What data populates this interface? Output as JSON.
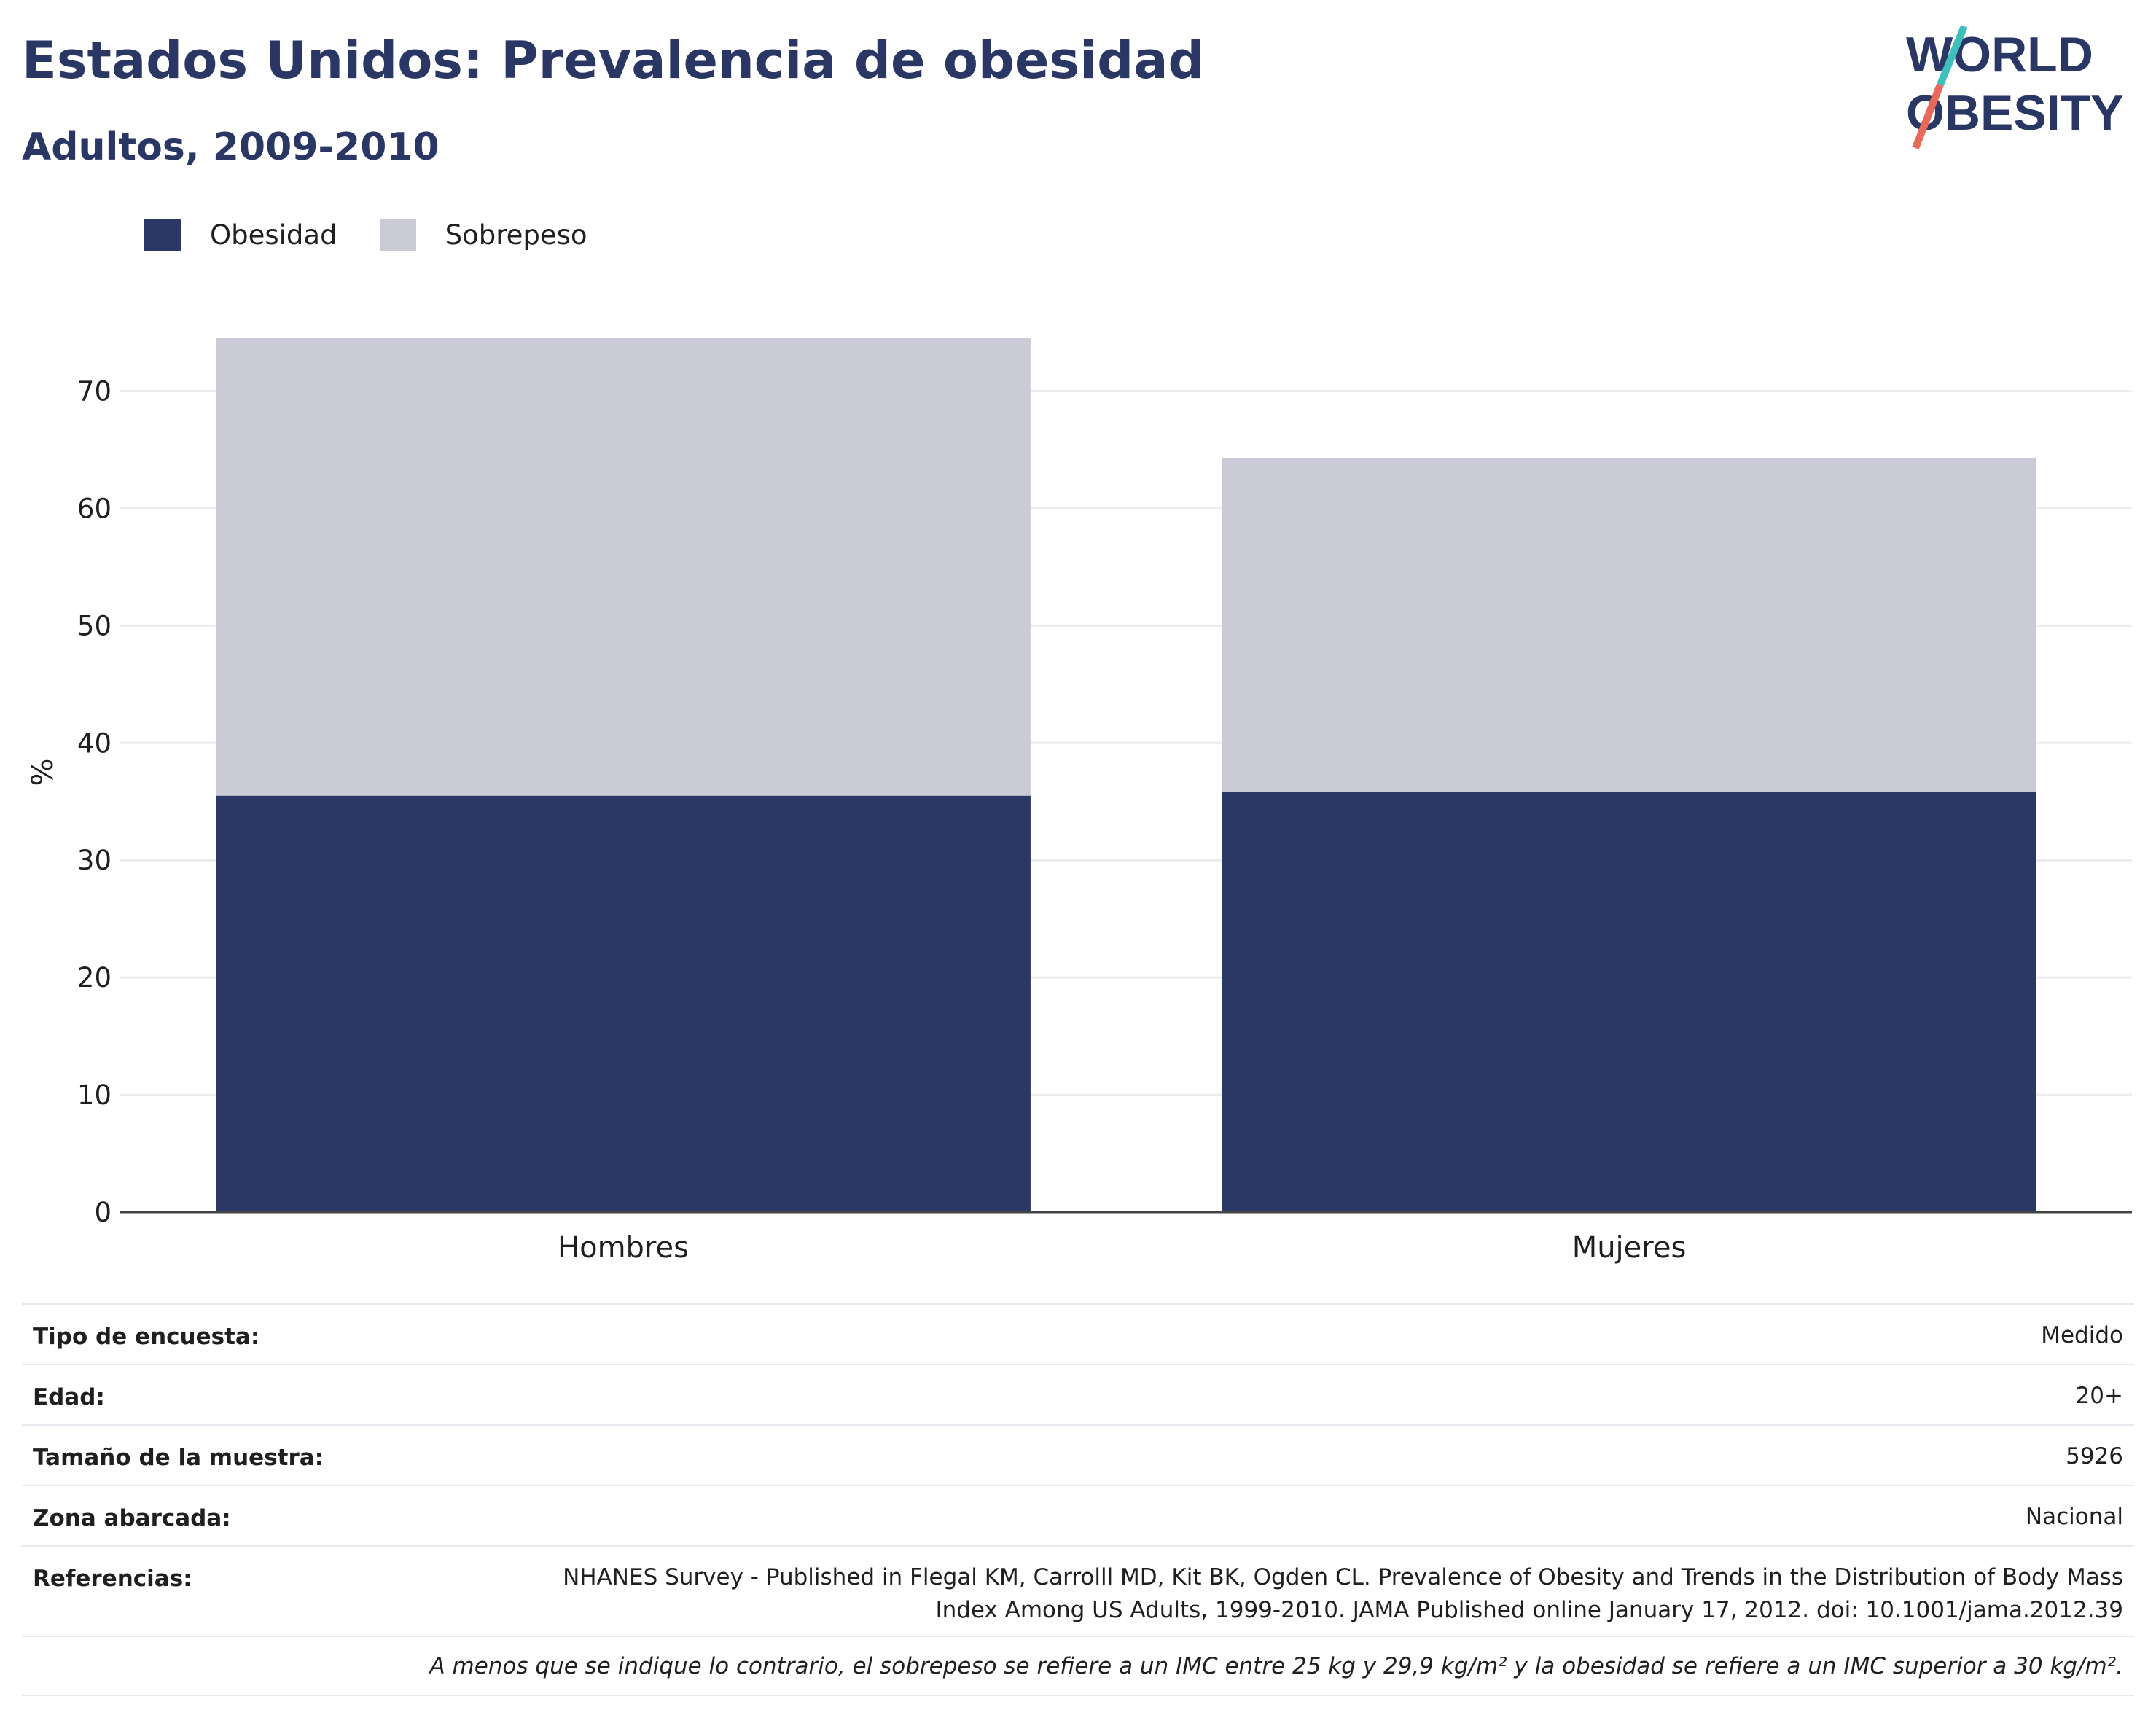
{
  "header": {
    "title": "Estados Unidos: Prevalencia de obesidad",
    "subtitle": "Adultos, 2009-2010"
  },
  "logo": {
    "line1": "WORLD",
    "line2": "OBESITY"
  },
  "colors": {
    "obesity": "#2b3764",
    "overweight": "#cacbd6",
    "text_dark": "#2a3663",
    "logo_teal": "#3dbfbe",
    "logo_coral": "#e8695a"
  },
  "legend": [
    {
      "label": "Obesidad",
      "color": "#2b3764"
    },
    {
      "label": "Sobrepeso",
      "color": "#cacbd6"
    }
  ],
  "chart_data": {
    "type": "bar",
    "stacked": true,
    "categories": [
      "Hombres",
      "Mujeres"
    ],
    "series": [
      {
        "name": "Obesidad",
        "values": [
          35.5,
          35.8
        ]
      },
      {
        "name": "Sobrepeso",
        "values": [
          39.0,
          28.5
        ]
      }
    ],
    "ylabel": "%",
    "ylim": [
      0,
      75
    ],
    "yticks": [
      0,
      10,
      20,
      30,
      40,
      50,
      60,
      70
    ],
    "grid": true,
    "legend_position": "top-left"
  },
  "meta": {
    "rows": [
      {
        "label": "Tipo de encuesta:",
        "value": "Medido"
      },
      {
        "label": "Edad:",
        "value": "20+"
      },
      {
        "label": "Tamaño de la muestra:",
        "value": "5926"
      },
      {
        "label": "Zona abarcada:",
        "value": "Nacional"
      },
      {
        "label": "Referencias:",
        "value": "NHANES Survey - Published in Flegal KM, Carrolll MD, Kit BK, Ogden CL. Prevalence of Obesity and Trends in the Distribution of Body Mass Index Among US Adults, 1999-2010. JAMA Published online January 17, 2012. doi: 10.1001/jama.2012.39"
      }
    ],
    "note": "A menos que se indique lo contrario, el sobrepeso se refiere a un IMC entre 25 kg y 29,9 kg/m² y la obesidad se refiere a un IMC superior a 30 kg/m²."
  }
}
